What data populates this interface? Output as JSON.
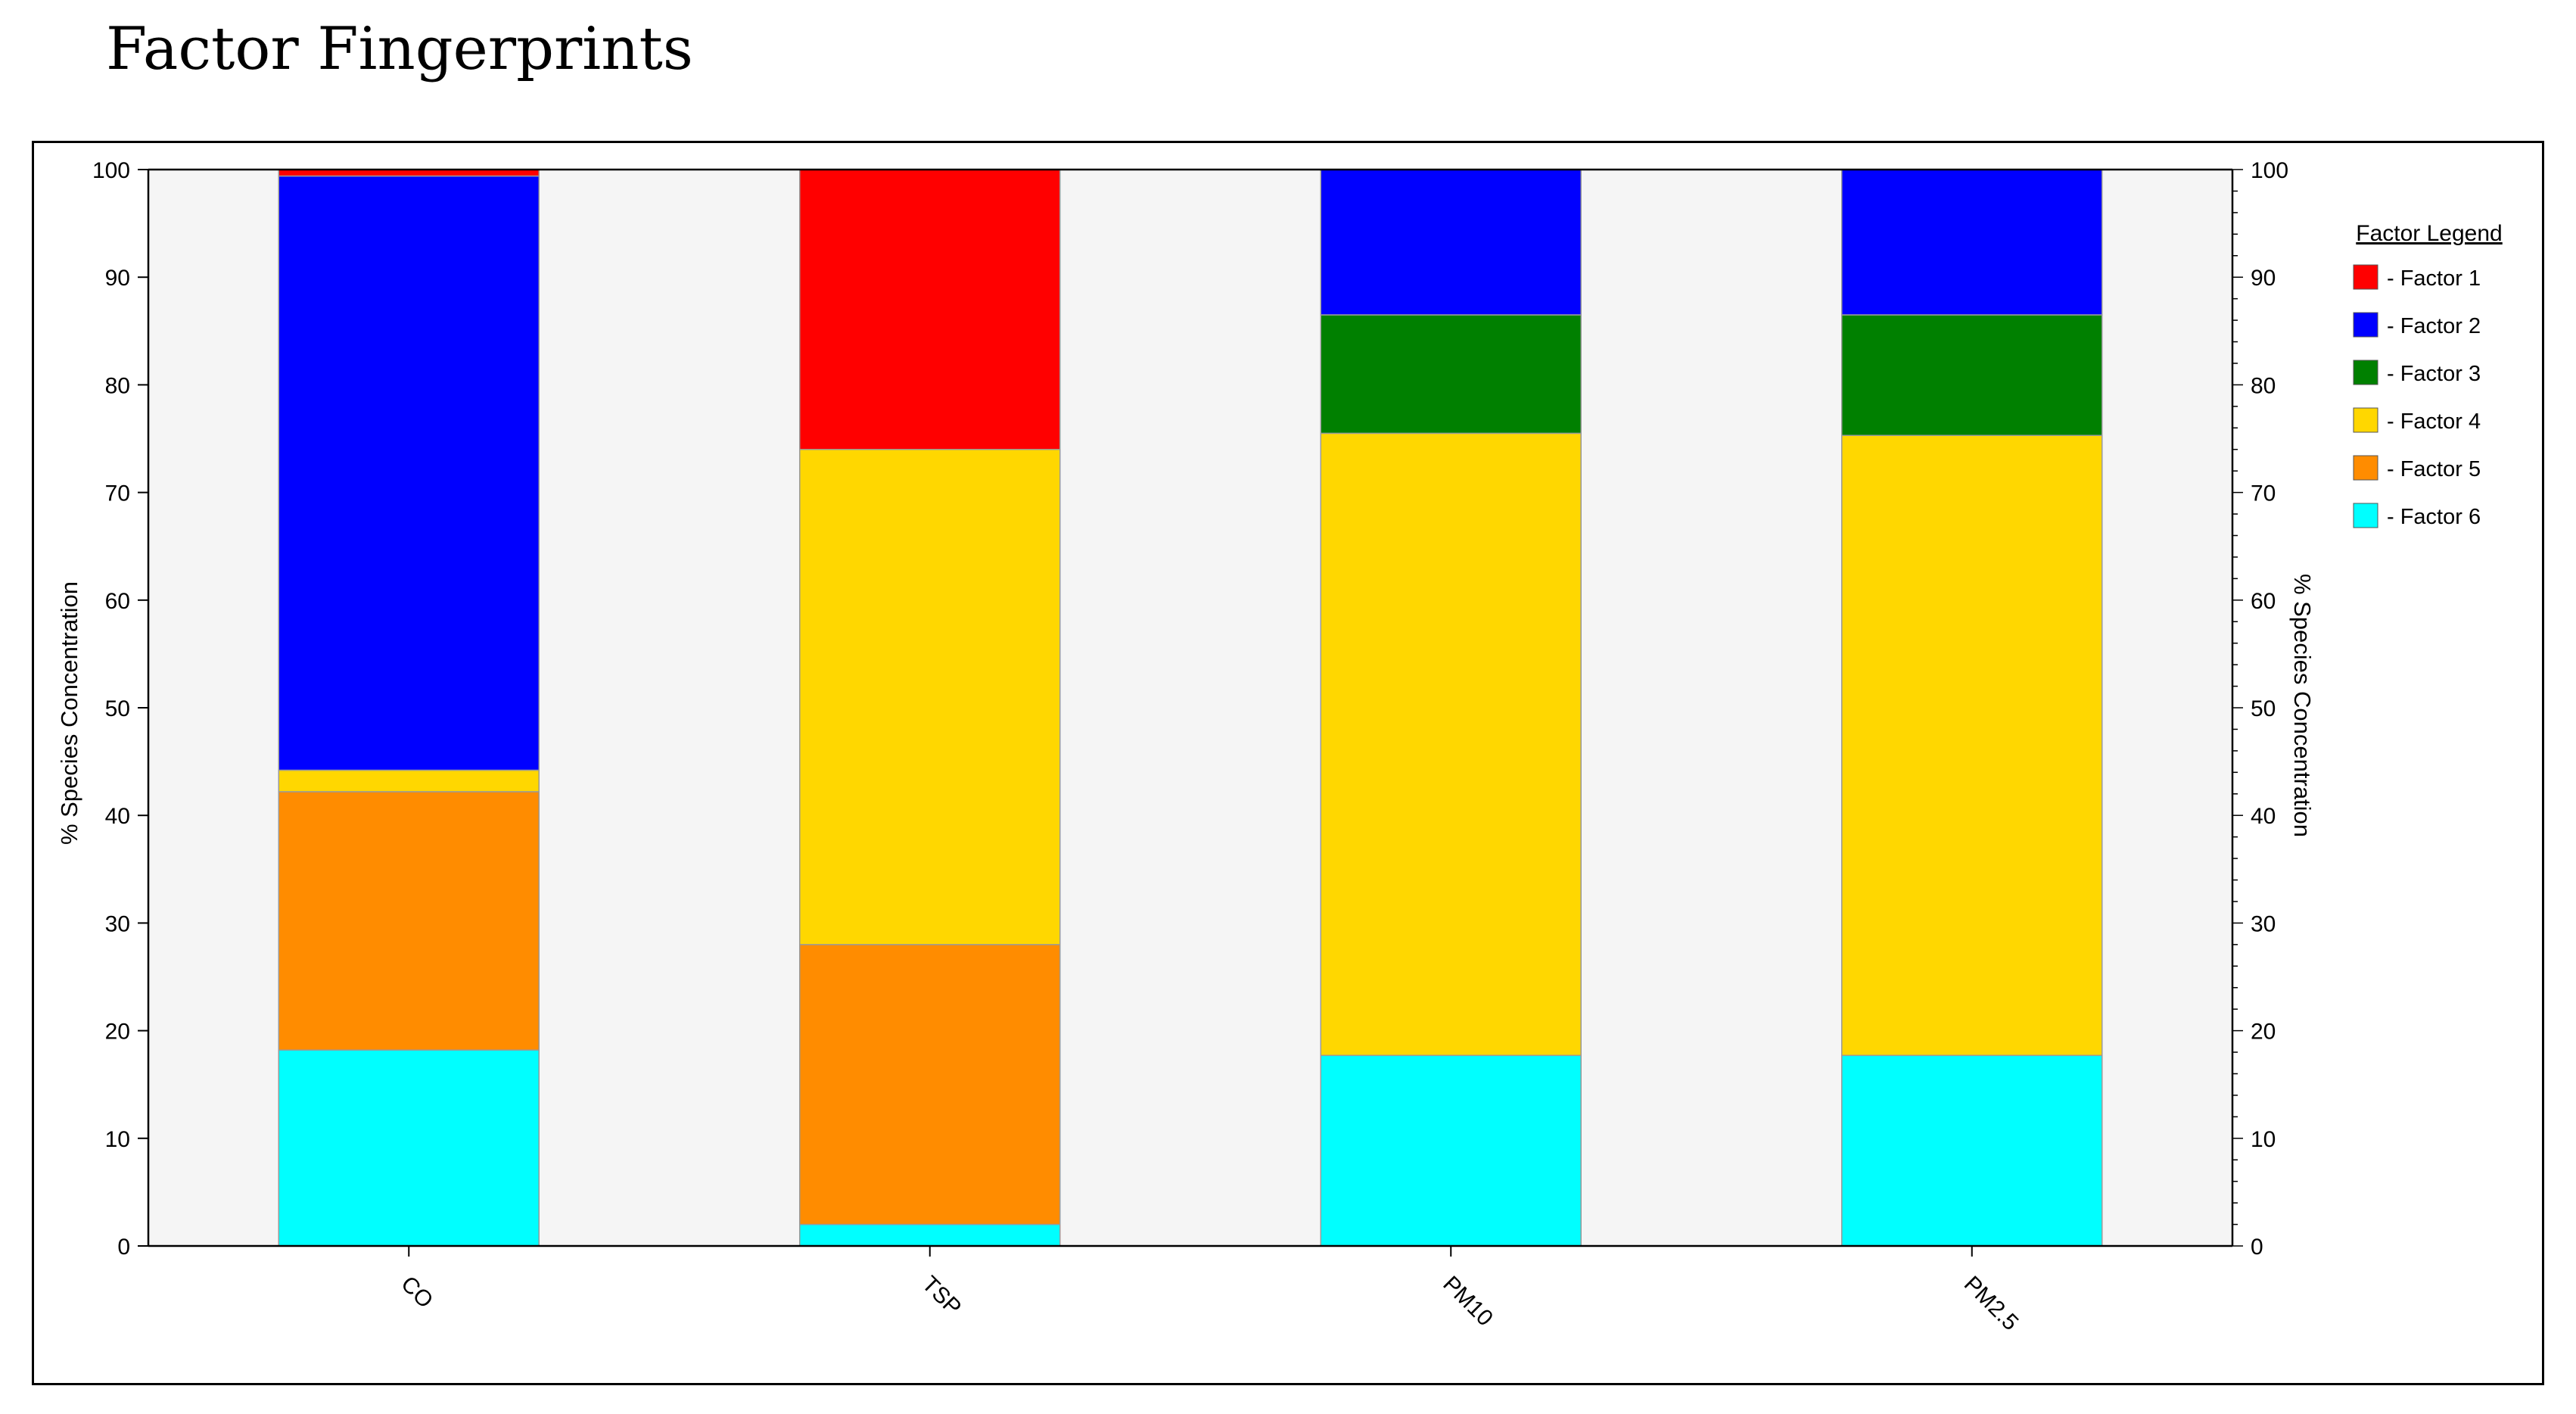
{
  "page": {
    "title": "Factor Fingerprints"
  },
  "chart_data": {
    "type": "bar",
    "stacked": true,
    "categories": [
      "CO",
      "TSP",
      "PM10",
      "PM2.5"
    ],
    "series": [
      {
        "name": "Factor 6",
        "color": "#00FFFF",
        "values": [
          18.2,
          2.0,
          17.7,
          17.7
        ]
      },
      {
        "name": "Factor 5",
        "color": "#FF8C00",
        "values": [
          24.0,
          26.0,
          0.0,
          0.0
        ]
      },
      {
        "name": "Factor 4",
        "color": "#FFD700",
        "values": [
          2.0,
          46.0,
          57.8,
          57.6
        ]
      },
      {
        "name": "Factor 3",
        "color": "#008000",
        "values": [
          0.0,
          0.0,
          11.0,
          11.2
        ]
      },
      {
        "name": "Factor 2",
        "color": "#0000FF",
        "values": [
          55.2,
          0.0,
          13.5,
          13.5
        ]
      },
      {
        "name": "Factor 1",
        "color": "#FF0000",
        "values": [
          0.6,
          26.0,
          0.0,
          0.0
        ]
      }
    ],
    "ylabel": "% Species Concentration",
    "ylabel_right": "% Species Concentration",
    "ylim": [
      0,
      100
    ],
    "yticks": [
      "0",
      "10",
      "20",
      "30",
      "40",
      "50",
      "60",
      "70",
      "80",
      "90",
      "100"
    ],
    "legend": {
      "title": "Factor Legend",
      "placement": "right",
      "entries": [
        {
          "label": "- Factor 1",
          "color": "#FF0000"
        },
        {
          "label": "- Factor 2",
          "color": "#0000FF"
        },
        {
          "label": "- Factor 3",
          "color": "#008000"
        },
        {
          "label": "- Factor 4",
          "color": "#FFD700"
        },
        {
          "label": "- Factor 5",
          "color": "#FF8C00"
        },
        {
          "label": "- Factor 6",
          "color": "#00FFFF"
        }
      ]
    },
    "plot_background": "#F5F5F5",
    "grid": false
  }
}
